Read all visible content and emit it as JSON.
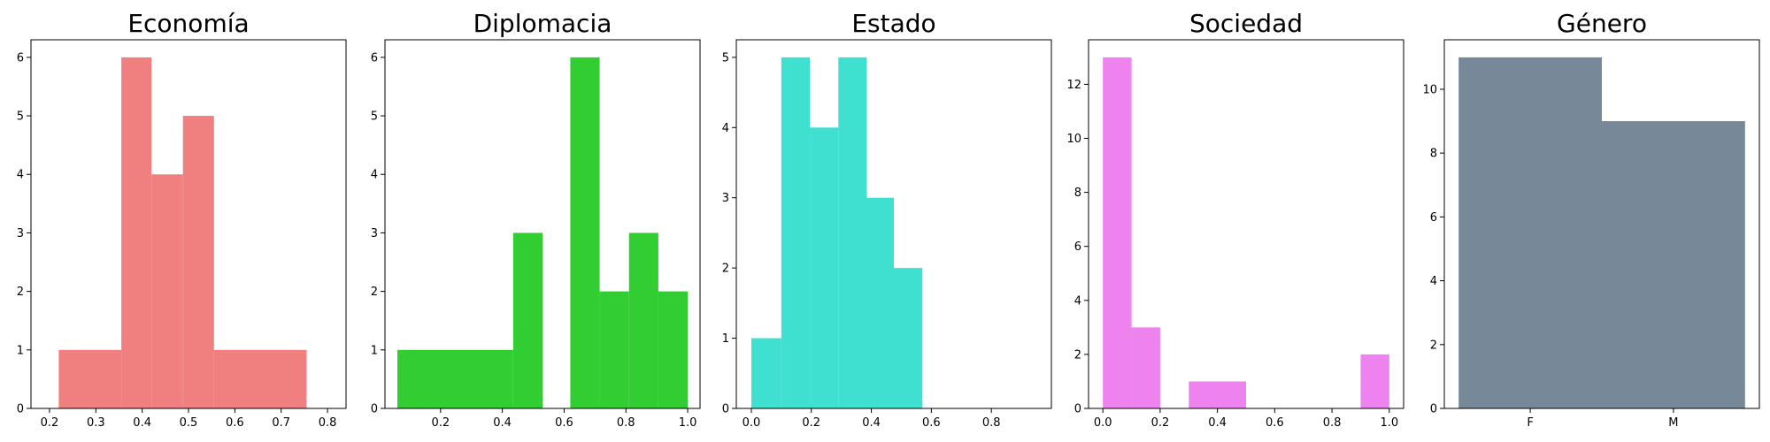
{
  "chart_data": [
    {
      "type": "bar",
      "title": "Economía",
      "color": "#F08080",
      "xlim": [
        0.16,
        0.84
      ],
      "ylim": [
        0,
        6.3
      ],
      "xticks": [
        "0.2",
        "0.3",
        "0.4",
        "0.5",
        "0.6",
        "0.7",
        "0.8"
      ],
      "yticks": [
        "0",
        "1",
        "2",
        "3",
        "4",
        "5",
        "6"
      ],
      "bins": [
        {
          "x0": 0.22,
          "x1": 0.355,
          "value": 1
        },
        {
          "x0": 0.355,
          "x1": 0.42,
          "value": 6
        },
        {
          "x0": 0.42,
          "x1": 0.488,
          "value": 4
        },
        {
          "x0": 0.488,
          "x1": 0.555,
          "value": 5
        },
        {
          "x0": 0.555,
          "x1": 0.755,
          "value": 1
        }
      ]
    },
    {
      "type": "bar",
      "title": "Diplomacia",
      "color": "#32CD32",
      "xlim": [
        0.02,
        1.04
      ],
      "ylim": [
        0,
        6.3
      ],
      "xticks": [
        "0.2",
        "0.4",
        "0.6",
        "0.8",
        "1.0"
      ],
      "yticks": [
        "0",
        "1",
        "2",
        "3",
        "4",
        "5",
        "6"
      ],
      "bins": [
        {
          "x0": 0.06,
          "x1": 0.435,
          "value": 1
        },
        {
          "x0": 0.435,
          "x1": 0.53,
          "value": 3
        },
        {
          "x0": 0.62,
          "x1": 0.715,
          "value": 6
        },
        {
          "x0": 0.715,
          "x1": 0.81,
          "value": 2
        },
        {
          "x0": 0.81,
          "x1": 0.905,
          "value": 3
        },
        {
          "x0": 0.905,
          "x1": 1.0,
          "value": 2
        }
      ]
    },
    {
      "type": "bar",
      "title": "Estado",
      "color": "#40E0D0",
      "xlim": [
        -0.05,
        1.0
      ],
      "ylim": [
        0,
        5.25
      ],
      "xticks": [
        "0.0",
        "0.2",
        "0.4",
        "0.6",
        "0.8"
      ],
      "yticks": [
        "0",
        "1",
        "2",
        "3",
        "4",
        "5"
      ],
      "bins": [
        {
          "x0": 0.0,
          "x1": 0.1,
          "value": 1
        },
        {
          "x0": 0.1,
          "x1": 0.195,
          "value": 5
        },
        {
          "x0": 0.195,
          "x1": 0.29,
          "value": 4
        },
        {
          "x0": 0.29,
          "x1": 0.385,
          "value": 5
        },
        {
          "x0": 0.385,
          "x1": 0.475,
          "value": 3
        },
        {
          "x0": 0.475,
          "x1": 0.57,
          "value": 2
        }
      ]
    },
    {
      "type": "bar",
      "title": "Sociedad",
      "color": "#EE82EE",
      "xlim": [
        -0.05,
        1.05
      ],
      "ylim": [
        0,
        13.65
      ],
      "xticks": [
        "0.0",
        "0.2",
        "0.4",
        "0.6",
        "0.8",
        "1.0"
      ],
      "yticks": [
        "0",
        "2",
        "4",
        "6",
        "8",
        "10",
        "12"
      ],
      "bins": [
        {
          "x0": 0.0,
          "x1": 0.1,
          "value": 13
        },
        {
          "x0": 0.1,
          "x1": 0.2,
          "value": 3
        },
        {
          "x0": 0.3,
          "x1": 0.5,
          "value": 1
        },
        {
          "x0": 0.9,
          "x1": 1.0,
          "value": 2
        }
      ]
    },
    {
      "type": "bar",
      "title": "Género",
      "color": "#778899",
      "xlim": [
        -0.6,
        1.6
      ],
      "ylim": [
        0,
        11.55
      ],
      "xticks": [
        "F",
        "M"
      ],
      "xtick_positions": [
        0,
        1
      ],
      "yticks": [
        "0",
        "2",
        "4",
        "6",
        "8",
        "10"
      ],
      "bins": [
        {
          "x0": -0.5,
          "x1": 0.5,
          "value": 11
        },
        {
          "x0": 0.5,
          "x1": 1.5,
          "value": 9
        }
      ]
    }
  ]
}
